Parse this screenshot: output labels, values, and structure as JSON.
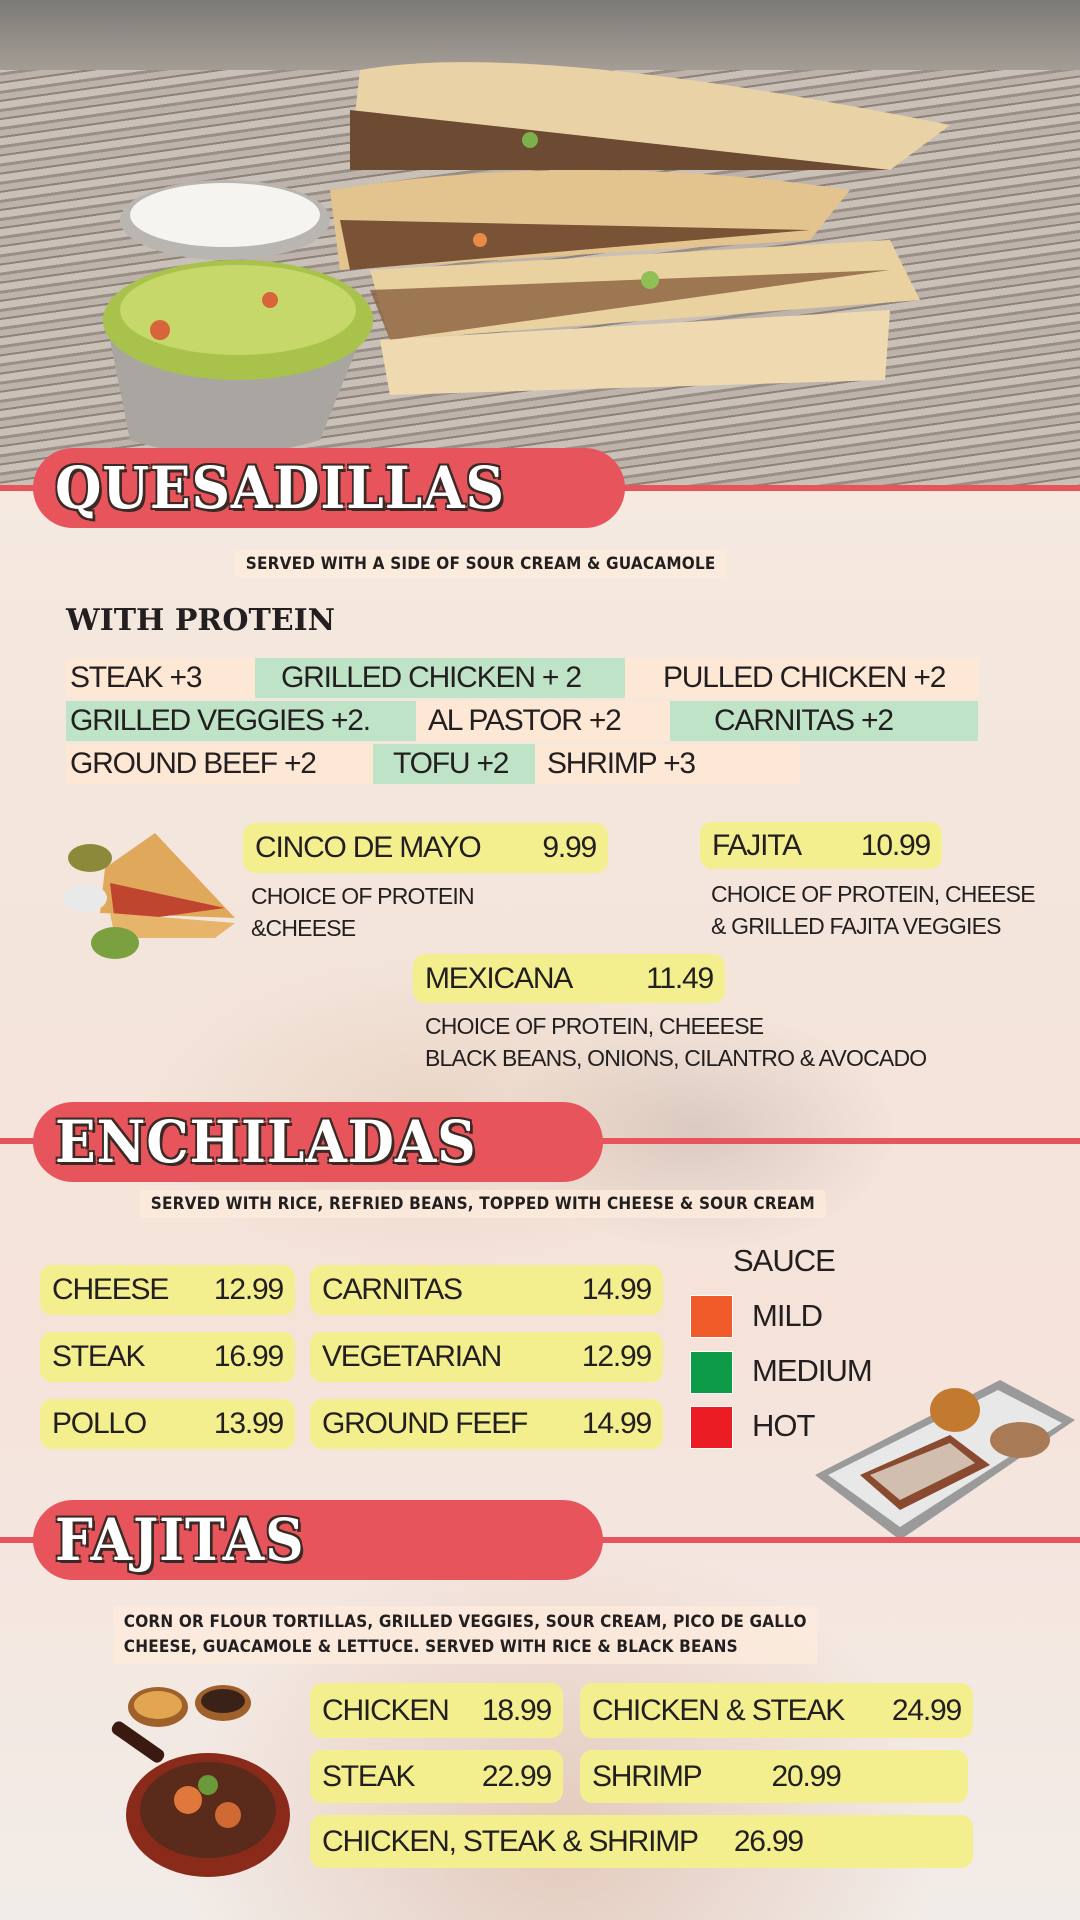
{
  "colors": {
    "banner": "#e8545c",
    "pill": "#f4ef8e",
    "peach": "#fde8d6",
    "green": "#bfe3c6",
    "mild": "#f15a29",
    "medium": "#0d9b48",
    "hot": "#ec1c24"
  },
  "quesadillas": {
    "title": "QUESADILLAS",
    "subtitle": "SERVED WITH A SIDE OF SOUR CREAM & GUACAMOLE",
    "protein_heading": "WITH PROTEIN",
    "proteins": [
      "STEAK +3",
      "GRILLED CHICKEN + 2",
      "PULLED CHICKEN +2",
      "GRILLED VEGGIES +2.",
      "AL PASTOR +2",
      "CARNITAS +2",
      "GROUND BEEF +2",
      "TOFU +2",
      "SHRIMP +3"
    ],
    "items": [
      {
        "name": "CINCO DE MAYO",
        "price": "9.99",
        "desc1": "CHOICE OF PROTEIN",
        "desc2": "&CHEESE"
      },
      {
        "name": "FAJITA",
        "price": "10.99",
        "desc1": "CHOICE OF PROTEIN, CHEESE",
        "desc2": "& GRILLED FAJITA VEGGIES"
      },
      {
        "name": "MEXICANA",
        "price": "11.49",
        "desc1": "CHOICE OF PROTEIN, CHEEESE",
        "desc2": "BLACK BEANS, ONIONS, CILANTRO & AVOCADO"
      }
    ]
  },
  "enchiladas": {
    "title": "ENCHILADAS",
    "subtitle": "SERVED WITH RICE, REFRIED BEANS, TOPPED WITH CHEESE & SOUR CREAM",
    "items": [
      {
        "name": "CHEESE",
        "price": "12.99"
      },
      {
        "name": "CARNITAS",
        "price": "14.99"
      },
      {
        "name": "STEAK",
        "price": "16.99"
      },
      {
        "name": "VEGETARIAN",
        "price": "12.99"
      },
      {
        "name": "POLLO",
        "price": "13.99"
      },
      {
        "name": "GROUND FEEF",
        "price": "14.99"
      }
    ],
    "sauce_heading": "SAUCE",
    "sauces": [
      "MILD",
      "MEDIUM",
      "HOT"
    ]
  },
  "fajitas": {
    "title": "FAJITAS",
    "subtitle1": "CORN OR FLOUR TORTILLAS, GRILLED VEGGIES, SOUR CREAM, PICO DE GALLO",
    "subtitle2": "CHEESE, GUACAMOLE & LETTUCE. SERVED WITH RICE & BLACK BEANS",
    "items": [
      {
        "name": "CHICKEN",
        "price": "18.99"
      },
      {
        "name": "CHICKEN & STEAK",
        "price": "24.99"
      },
      {
        "name": "STEAK",
        "price": "22.99"
      },
      {
        "name": "SHRIMP",
        "price": "20.99"
      },
      {
        "name": "CHICKEN, STEAK & SHRIMP",
        "price": "26.99"
      }
    ]
  }
}
